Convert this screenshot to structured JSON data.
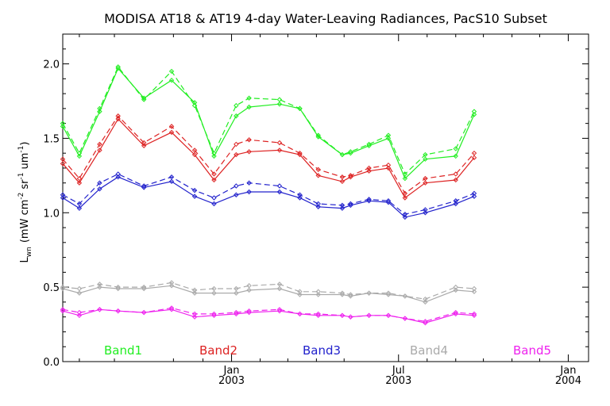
{
  "chart_data": {
    "type": "line",
    "title": "MODISA AT18 & AT19 4-day Water-Leaving Radiances, PacS10 Subset",
    "ylabel": "L_wn (mW cm^-2 sr^-1 um^-1)",
    "ylabel_main": "L",
    "ylabel_sub": "wn",
    "ylabel_rest": "(mW cm",
    "ylabel_exp1": "-2",
    "ylabel_mid": "sr",
    "ylabel_exp2": "-1",
    "ylabel_unit": "um",
    "ylabel_exp3": "-1",
    "ylabel_end": ")",
    "xlabel": "",
    "ylim": [
      0.0,
      2.2
    ],
    "y_ticks": [
      "0.0",
      "0.5",
      "1.0",
      "1.5",
      "2.0"
    ],
    "y_tick_values": [
      0.0,
      0.5,
      1.0,
      1.5,
      2.0
    ],
    "x_range_days": [
      0,
      570
    ],
    "x_ticks": [
      {
        "label": "Jan",
        "year": "2003",
        "day": 183
      },
      {
        "label": "Jul",
        "year": "2003",
        "day": 364
      },
      {
        "label": "Jan",
        "year": "2004",
        "day": 548
      }
    ],
    "minor_x_ticks": [
      18,
      56,
      120,
      152,
      214,
      244,
      275,
      305,
      395,
      426,
      456,
      487,
      517
    ],
    "grid": false,
    "legend_position": "bottom",
    "x": [
      0,
      18,
      40,
      60,
      88,
      118,
      143,
      164,
      166,
      188,
      202,
      235,
      257,
      277,
      303,
      312,
      332,
      353,
      371,
      393,
      426,
      446,
      473,
      497,
      516,
      528,
      550,
      562
    ],
    "series": [
      {
        "name": "Band1",
        "color": "#22ee22",
        "solid": [
          1.58,
          1.38,
          1.68,
          1.97,
          1.77,
          1.89,
          1.74,
          1.38,
          null,
          1.65,
          1.71,
          1.73,
          1.7,
          1.51,
          1.39,
          1.4,
          1.45,
          1.5,
          1.23,
          1.36,
          1.38,
          1.66,
          null,
          null,
          null,
          null,
          null,
          null
        ],
        "dashed": [
          1.6,
          1.4,
          1.7,
          1.98,
          1.76,
          1.95,
          1.72,
          1.4,
          null,
          1.72,
          1.77,
          1.76,
          1.7,
          1.52,
          1.39,
          1.41,
          1.46,
          1.52,
          1.26,
          1.39,
          1.43,
          1.68,
          null,
          null,
          null,
          null,
          null,
          null
        ]
      },
      {
        "name": "Band2",
        "color": "#dd2222",
        "solid": [
          1.33,
          1.2,
          1.42,
          1.63,
          1.45,
          1.54,
          1.39,
          1.22,
          null,
          1.39,
          1.41,
          1.42,
          1.39,
          1.25,
          1.21,
          1.24,
          1.28,
          1.3,
          1.1,
          1.2,
          1.22,
          1.37,
          null,
          null,
          null,
          null,
          null,
          null
        ],
        "dashed": [
          1.36,
          1.23,
          1.46,
          1.65,
          1.47,
          1.58,
          1.42,
          1.26,
          null,
          1.46,
          1.49,
          1.47,
          1.4,
          1.29,
          1.24,
          1.25,
          1.3,
          1.32,
          1.13,
          1.23,
          1.26,
          1.4,
          null,
          null,
          null,
          null,
          null,
          null
        ]
      },
      {
        "name": "Band3",
        "color": "#2222cc",
        "solid": [
          1.1,
          1.03,
          1.16,
          1.24,
          1.17,
          1.21,
          1.11,
          1.06,
          null,
          1.12,
          1.14,
          1.14,
          1.1,
          1.04,
          1.03,
          1.05,
          1.08,
          1.07,
          0.97,
          1.0,
          1.06,
          1.11,
          null,
          null,
          null,
          null,
          null,
          null
        ],
        "dashed": [
          1.12,
          1.06,
          1.2,
          1.26,
          1.18,
          1.24,
          1.15,
          1.1,
          null,
          1.18,
          1.2,
          1.18,
          1.12,
          1.06,
          1.05,
          1.06,
          1.09,
          1.08,
          0.99,
          1.02,
          1.08,
          1.13,
          null,
          null,
          null,
          null,
          null,
          null
        ]
      },
      {
        "name": "Band4",
        "color": "#aaaaaa",
        "solid": [
          0.49,
          0.46,
          0.5,
          0.49,
          0.49,
          0.51,
          0.46,
          0.46,
          null,
          0.46,
          0.48,
          0.49,
          0.45,
          0.45,
          0.45,
          0.44,
          0.46,
          0.45,
          0.44,
          0.4,
          0.48,
          0.47,
          null,
          null,
          null,
          null,
          null,
          null
        ],
        "dashed": [
          0.5,
          0.49,
          0.52,
          0.5,
          0.5,
          0.53,
          0.48,
          0.49,
          null,
          0.49,
          0.51,
          0.52,
          0.47,
          0.47,
          0.46,
          0.45,
          0.46,
          0.46,
          0.44,
          0.42,
          0.5,
          0.49,
          null,
          null,
          null,
          null,
          null,
          null
        ]
      },
      {
        "name": "Band5",
        "color": "#ee22ee",
        "solid": [
          0.34,
          0.31,
          0.35,
          0.34,
          0.33,
          0.35,
          0.3,
          0.31,
          null,
          0.32,
          0.33,
          0.34,
          0.32,
          0.31,
          0.31,
          0.3,
          0.31,
          0.31,
          0.29,
          0.26,
          0.32,
          0.31,
          null,
          null,
          null,
          null,
          null,
          null
        ],
        "dashed": [
          0.35,
          0.33,
          0.35,
          0.34,
          0.33,
          0.36,
          0.32,
          0.32,
          null,
          0.33,
          0.34,
          0.35,
          0.32,
          0.32,
          0.31,
          0.3,
          0.31,
          0.31,
          0.29,
          0.27,
          0.33,
          0.32,
          null,
          null,
          null,
          null,
          null,
          null
        ]
      }
    ]
  }
}
